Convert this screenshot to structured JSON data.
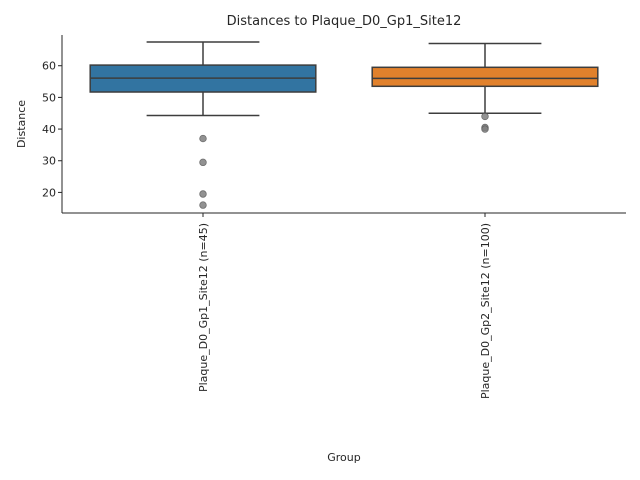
{
  "chart_data": {
    "type": "box",
    "title": "Distances to Plaque_D0_Gp1_Site12",
    "xlabel": "Group",
    "ylabel": "Distance",
    "ylim": [
      13.5,
      69.7
    ],
    "yticks": [
      20,
      30,
      40,
      50,
      60
    ],
    "grid": false,
    "legend": "none",
    "series": [
      {
        "category": "Plaque_D0_Gp1_Site12 (n=45)",
        "color": "#3274a1",
        "whisker_low": 44.3,
        "q1": 51.7,
        "median": 56.1,
        "q3": 60.2,
        "whisker_high": 67.5,
        "outliers": [
          37.0,
          29.5,
          19.5,
          16.0
        ]
      },
      {
        "category": "Plaque_D0_Gp2_Site12 (n=100)",
        "color": "#e1812c",
        "whisker_low": 45.0,
        "q1": 53.5,
        "median": 56.0,
        "q3": 59.5,
        "whisker_high": 67.0,
        "outliers": [
          44.0,
          40.5,
          40.0
        ]
      }
    ]
  }
}
